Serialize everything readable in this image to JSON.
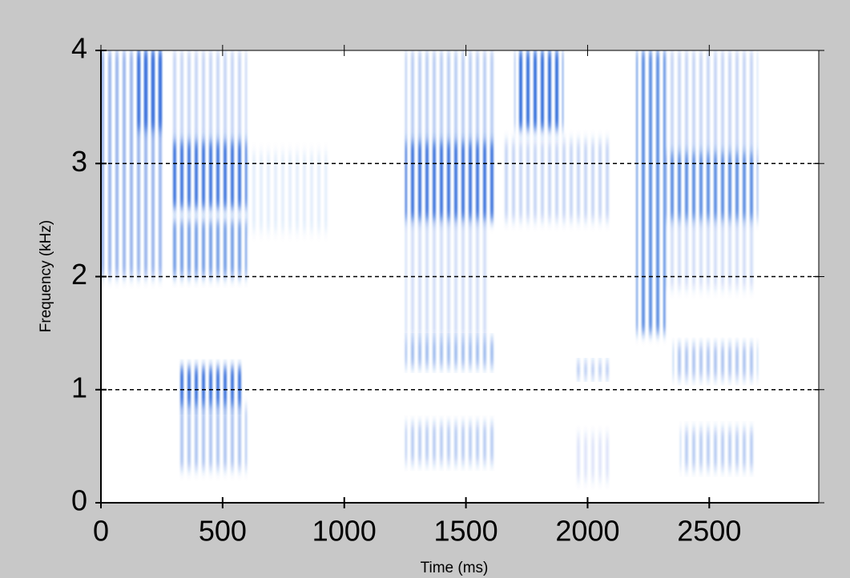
{
  "chart_data": {
    "type": "spectrogram",
    "x_label": "Time (ms)",
    "y_label": "Frequency (kHz)",
    "xlim": [
      0,
      2950
    ],
    "ylim": [
      0,
      4
    ],
    "xticks": [
      0,
      500,
      1000,
      1500,
      2000,
      2500
    ],
    "yticks": [
      0,
      1,
      2,
      3,
      4
    ],
    "grid": true,
    "color": "#1f5fd6",
    "regions": [
      {
        "t": [
          0,
          250
        ],
        "f": [
          2.0,
          4.0
        ],
        "level": 0.45
      },
      {
        "t": [
          150,
          250
        ],
        "f": [
          3.3,
          4.0
        ],
        "level": 0.8
      },
      {
        "t": [
          280,
          600
        ],
        "f": [
          3.2,
          4.0
        ],
        "level": 0.25
      },
      {
        "t": [
          280,
          600
        ],
        "f": [
          2.6,
          3.2
        ],
        "level": 0.85
      },
      {
        "t": [
          280,
          600
        ],
        "f": [
          2.0,
          2.5
        ],
        "level": 0.6
      },
      {
        "t": [
          320,
          580
        ],
        "f": [
          0.85,
          1.2
        ],
        "level": 0.85
      },
      {
        "t": [
          310,
          600
        ],
        "f": [
          0.3,
          0.85
        ],
        "level": 0.35
      },
      {
        "t": [
          600,
          930
        ],
        "f": [
          2.4,
          3.1
        ],
        "level": 0.1
      },
      {
        "t": [
          1250,
          1620
        ],
        "f": [
          3.2,
          4.0
        ],
        "level": 0.3
      },
      {
        "t": [
          1250,
          1620
        ],
        "f": [
          2.5,
          3.2
        ],
        "level": 0.85
      },
      {
        "t": [
          1250,
          1600
        ],
        "f": [
          1.45,
          2.5
        ],
        "level": 0.2
      },
      {
        "t": [
          1250,
          1620
        ],
        "f": [
          1.2,
          1.45
        ],
        "level": 0.4
      },
      {
        "t": [
          1250,
          1620
        ],
        "f": [
          0.35,
          0.7
        ],
        "level": 0.3
      },
      {
        "t": [
          1700,
          1900
        ],
        "f": [
          3.3,
          4.0
        ],
        "level": 0.9
      },
      {
        "t": [
          1650,
          2100
        ],
        "f": [
          2.5,
          3.2
        ],
        "level": 0.25
      },
      {
        "t": [
          1950,
          2100
        ],
        "f": [
          1.1,
          1.25
        ],
        "level": 0.3
      },
      {
        "t": [
          1950,
          2100
        ],
        "f": [
          0.2,
          0.6
        ],
        "level": 0.15
      },
      {
        "t": [
          2200,
          2320
        ],
        "f": [
          1.5,
          4.0
        ],
        "level": 0.7
      },
      {
        "t": [
          2320,
          2700
        ],
        "f": [
          3.1,
          4.0
        ],
        "level": 0.25
      },
      {
        "t": [
          2320,
          2700
        ],
        "f": [
          2.5,
          3.1
        ],
        "level": 0.7
      },
      {
        "t": [
          2320,
          2680
        ],
        "f": [
          1.9,
          2.5
        ],
        "level": 0.2
      },
      {
        "t": [
          2350,
          2700
        ],
        "f": [
          1.1,
          1.4
        ],
        "level": 0.35
      },
      {
        "t": [
          2380,
          2680
        ],
        "f": [
          0.3,
          0.65
        ],
        "level": 0.3
      }
    ]
  }
}
